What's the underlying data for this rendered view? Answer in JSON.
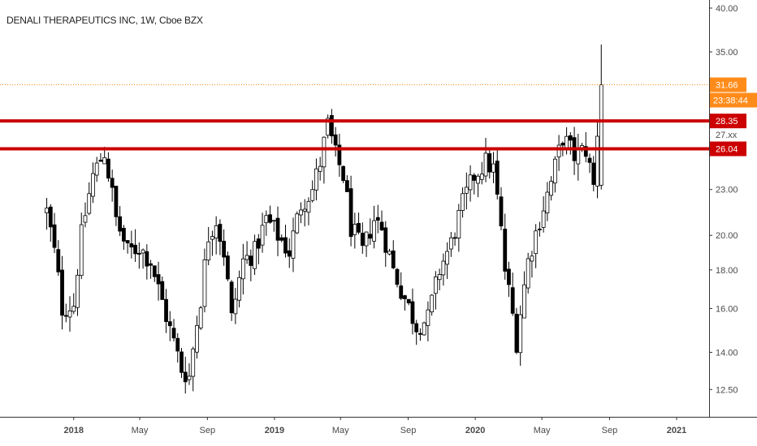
{
  "title": "DENALI THERAPEUTICS INC, 1W, Cboe BZX",
  "colors": {
    "up": "#ffffff",
    "down": "#000000",
    "outline": "#000000",
    "resistance": "#cc0000",
    "last_price": "#ff8c1a",
    "axis_text": "#4a4a4a"
  },
  "chart_data": {
    "type": "candlestick",
    "title": "DENALI THERAPEUTICS INC, 1W, Cboe BZX",
    "y_scale": "log",
    "ylim": [
      11.5,
      41
    ],
    "y_ticks": [
      "12.50",
      "14.00",
      "16.00",
      "18.00",
      "20.00",
      "23.00",
      "35.00",
      "40.00"
    ],
    "x_tick_labels": [
      "2018",
      "May",
      "Sep",
      "2019",
      "May",
      "Sep",
      "2020",
      "May",
      "Sep",
      "2021"
    ],
    "x_tick_dates": [
      "2018-01-01",
      "2018-05-01",
      "2018-09-01",
      "2019-01-01",
      "2019-05-01",
      "2019-09-01",
      "2020-01-01",
      "2020-05-01",
      "2020-09-01",
      "2021-01-01"
    ],
    "xlim": [
      "2017-08-20",
      "2021-03-01"
    ],
    "horizontal_lines": [
      {
        "value": 28.35,
        "label": "28.35",
        "style": "resistance"
      },
      {
        "value": 26.04,
        "label": "26.04",
        "style": "resistance"
      }
    ],
    "last_price": {
      "value": 31.66,
      "label": "31.66",
      "countdown": "23:38:44"
    },
    "hidden_label": "27.xx",
    "anchors": [
      [
        "2017-11-13",
        21.5
      ],
      [
        "2017-11-27",
        19.0
      ],
      [
        "2017-12-11",
        16.0
      ],
      [
        "2018-01-01",
        16.2
      ],
      [
        "2018-01-15",
        20.0
      ],
      [
        "2018-02-05",
        24.0
      ],
      [
        "2018-02-26",
        25.8
      ],
      [
        "2018-03-19",
        21.0
      ],
      [
        "2018-04-09",
        19.0
      ],
      [
        "2018-04-30",
        19.3
      ],
      [
        "2018-05-21",
        18.5
      ],
      [
        "2018-06-04",
        17.0
      ],
      [
        "2018-06-25",
        15.0
      ],
      [
        "2018-07-16",
        13.3
      ],
      [
        "2018-07-30",
        13.0
      ],
      [
        "2018-08-20",
        16.5
      ],
      [
        "2018-09-03",
        20.0
      ],
      [
        "2018-09-17",
        21.0
      ],
      [
        "2018-10-01",
        19.0
      ],
      [
        "2018-10-15",
        15.5
      ],
      [
        "2018-11-05",
        18.5
      ],
      [
        "2018-11-26",
        19.0
      ],
      [
        "2018-12-17",
        21.0
      ],
      [
        "2019-01-07",
        20.0
      ],
      [
        "2019-01-28",
        19.0
      ],
      [
        "2019-02-18",
        22.0
      ],
      [
        "2019-03-11",
        23.0
      ],
      [
        "2019-03-25",
        25.0
      ],
      [
        "2019-04-08",
        28.0
      ],
      [
        "2019-04-22",
        25.5
      ],
      [
        "2019-05-06",
        24.0
      ],
      [
        "2019-05-20",
        20.5
      ],
      [
        "2019-06-10",
        19.0
      ],
      [
        "2019-07-01",
        21.0
      ],
      [
        "2019-07-15",
        20.5
      ],
      [
        "2019-08-05",
        18.0
      ],
      [
        "2019-08-26",
        16.5
      ],
      [
        "2019-09-16",
        15.2
      ],
      [
        "2019-10-07",
        15.5
      ],
      [
        "2019-10-28",
        18.0
      ],
      [
        "2019-11-18",
        19.5
      ],
      [
        "2019-12-09",
        22.0
      ],
      [
        "2019-12-30",
        24.0
      ],
      [
        "2020-01-20",
        25.0
      ],
      [
        "2020-02-03",
        24.5
      ],
      [
        "2020-02-24",
        18.0
      ],
      [
        "2020-03-16",
        14.5
      ],
      [
        "2020-04-06",
        18.5
      ],
      [
        "2020-04-27",
        21.0
      ],
      [
        "2020-05-18",
        23.5
      ],
      [
        "2020-06-08",
        27.0
      ],
      [
        "2020-06-29",
        25.5
      ],
      [
        "2020-07-20",
        26.0
      ],
      [
        "2020-08-03",
        23.2
      ],
      [
        "2020-08-17",
        31.66
      ]
    ]
  }
}
